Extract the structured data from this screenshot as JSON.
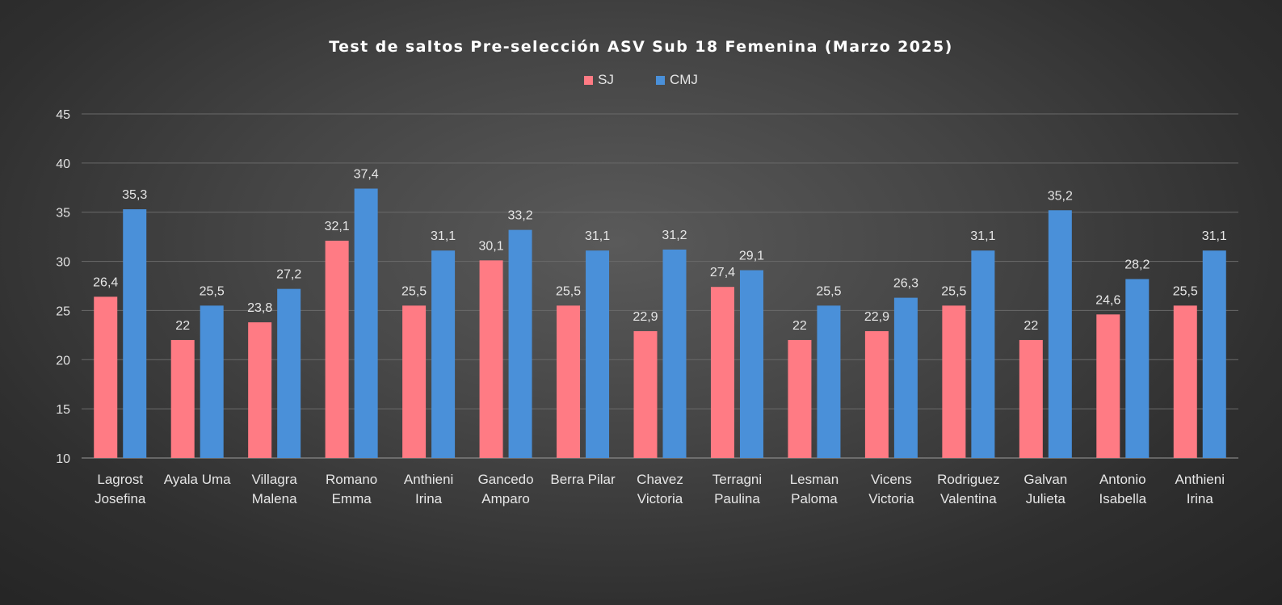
{
  "chart_data": {
    "type": "bar",
    "title": "Test de saltos Pre-selección ASV Sub 18 Femenina (Marzo 2025)",
    "xlabel": "",
    "ylabel": "",
    "ylim": [
      10,
      45
    ],
    "yticks": [
      10,
      15,
      20,
      25,
      30,
      35,
      40,
      45
    ],
    "grid": true,
    "legend_position": "top",
    "categories": [
      [
        "Lagrost",
        "Josefina"
      ],
      [
        "Ayala Uma"
      ],
      [
        "Villagra",
        "Malena"
      ],
      [
        "Romano",
        "Emma"
      ],
      [
        "Anthieni",
        "Irina"
      ],
      [
        "Gancedo",
        "Amparo"
      ],
      [
        "Berra Pilar"
      ],
      [
        "Chavez",
        "Victoria"
      ],
      [
        "Terragni",
        "Paulina"
      ],
      [
        "Lesman",
        "Paloma"
      ],
      [
        "Vicens",
        "Victoria"
      ],
      [
        "Rodriguez",
        "Valentina"
      ],
      [
        "Galvan",
        "Julieta"
      ],
      [
        "Antonio",
        "Isabella"
      ],
      [
        "Anthieni",
        "Irina"
      ]
    ],
    "series": [
      {
        "name": "SJ",
        "color": "#ff7b84",
        "values": [
          26.4,
          22,
          23.8,
          32.1,
          25.5,
          30.1,
          25.5,
          22.9,
          27.4,
          22,
          22.9,
          25.5,
          22,
          24.6,
          25.5
        ],
        "labels": [
          "26,4",
          "22",
          "23,8",
          "32,1",
          "25,5",
          "30,1",
          "25,5",
          "22,9",
          "27,4",
          "22",
          "22,9",
          "25,5",
          "22",
          "24,6",
          "25,5"
        ]
      },
      {
        "name": "CMJ",
        "color": "#4a90d9",
        "values": [
          35.3,
          25.5,
          27.2,
          37.4,
          31.1,
          33.2,
          31.1,
          31.2,
          29.1,
          25.5,
          26.3,
          31.1,
          35.2,
          28.2,
          31.1
        ],
        "labels": [
          "35,3",
          "25,5",
          "27,2",
          "37,4",
          "31,1",
          "33,2",
          "31,1",
          "31,2",
          "29,1",
          "25,5",
          "26,3",
          "31,1",
          "35,2",
          "28,2",
          "31,1"
        ]
      }
    ]
  }
}
